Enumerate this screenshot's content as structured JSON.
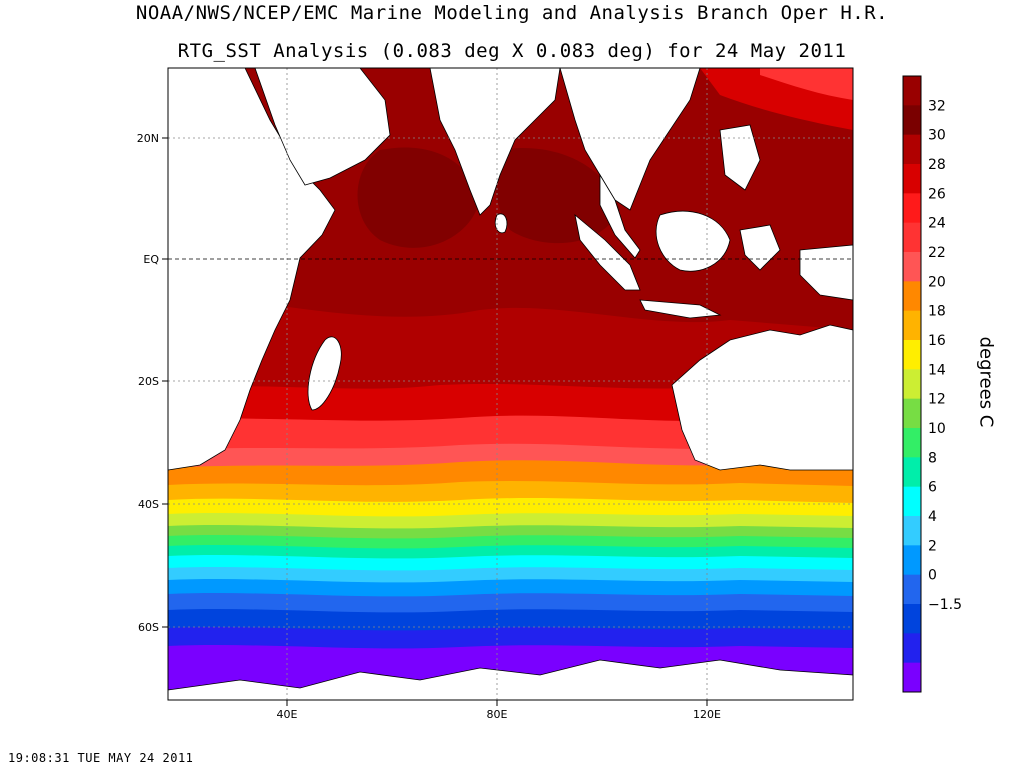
{
  "title_line1": "NOAA/NWS/NCEP/EMC Marine Modeling and Analysis Branch Oper H.R.",
  "title_line2": "RTG_SST Analysis (0.083 deg X 0.083 deg) for 24 May 2011",
  "map": {
    "region": "Indian Ocean",
    "lon_range": [
      20,
      147
    ],
    "lat_range": [
      -72,
      30
    ],
    "lon_ticks": [
      "40E",
      "80E",
      "120E"
    ],
    "lat_ticks": [
      "20N",
      "EQ",
      "20S",
      "40S",
      "60S"
    ],
    "land_color": "#ffffff",
    "coastline_color": "#000000"
  },
  "colorbar": {
    "labels": [
      "32",
      "30",
      "28",
      "26",
      "24",
      "22",
      "20",
      "18",
      "16",
      "14",
      "12",
      "10",
      "8",
      "6",
      "4",
      "2",
      "0",
      "−1.5"
    ],
    "colors": [
      "#990000",
      "#7a0000",
      "#b00000",
      "#d80000",
      "#ff1a1a",
      "#ff3333",
      "#ff5555",
      "#ff8800",
      "#ffb300",
      "#ffee00",
      "#ccee33",
      "#77dd44",
      "#33ee66",
      "#00eeaa",
      "#00ffff",
      "#33ccff",
      "#0099ff",
      "#2266ee",
      "#0044dd",
      "#2222ee",
      "#7a00ff"
    ],
    "units": "degrees C"
  },
  "timestamp": "19:08:31  TUE MAY 24 2011"
}
